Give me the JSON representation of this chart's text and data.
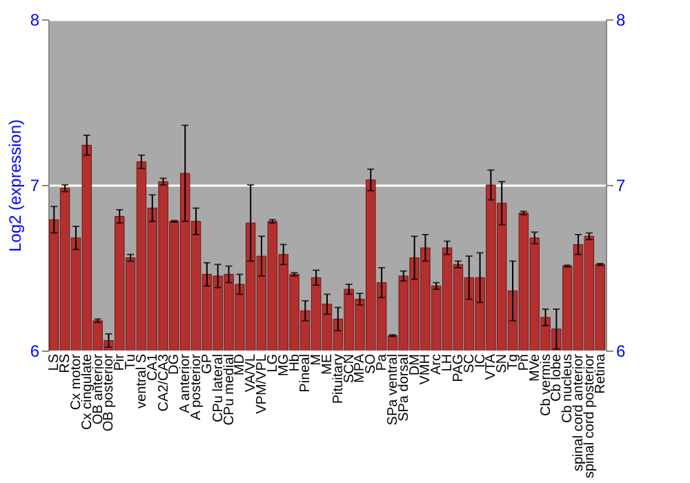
{
  "chart_data": {
    "type": "bar",
    "ylabel": "Log2 (expression)",
    "categories": [
      "LS",
      "RS",
      "Cx motor",
      "Cx cingulate",
      "OB anterior",
      "OB posterior",
      "Pir",
      "Tu",
      "ventral S",
      "CA1",
      "CA2/CA3",
      "DG",
      "A anterior",
      "A posterior",
      "GP",
      "CPu lateral",
      "CPu medial",
      "MD",
      "VA/VL",
      "VPM/VPL",
      "LG",
      "MG",
      "Hb",
      "Pineal",
      "M",
      "ME",
      "Pituitary",
      "SCN",
      "MPA",
      "SO",
      "Pa",
      "SPa ventral",
      "SPa dorsal",
      "DM",
      "VMH",
      "Arc",
      "LH",
      "PAG",
      "SC",
      "IC",
      "VTA",
      "SN",
      "Tg",
      "Pn",
      "MVe",
      "Cb vermis",
      "Cb lobe",
      "Cb nucleus",
      "spinal cord anterior",
      "spinal cord posterior",
      "Retina"
    ],
    "values": [
      6.79,
      6.98,
      6.68,
      7.24,
      6.18,
      6.06,
      6.81,
      6.56,
      7.14,
      6.86,
      7.02,
      6.78,
      7.07,
      6.78,
      6.46,
      6.45,
      6.46,
      6.4,
      6.77,
      6.57,
      6.78,
      6.58,
      6.46,
      6.24,
      6.44,
      6.28,
      6.19,
      6.37,
      6.31,
      7.03,
      6.41,
      6.09,
      6.45,
      6.56,
      6.62,
      6.39,
      6.62,
      6.52,
      6.44,
      6.44,
      7.0,
      6.89,
      6.36,
      6.83,
      6.68,
      6.2,
      6.13,
      6.51,
      6.64,
      6.69,
      6.52
    ],
    "errors": [
      0.08,
      0.02,
      0.07,
      0.06,
      0.01,
      0.04,
      0.04,
      0.02,
      0.04,
      0.08,
      0.02,
      0.005,
      0.29,
      0.08,
      0.07,
      0.07,
      0.05,
      0.06,
      0.23,
      0.12,
      0.01,
      0.06,
      0.01,
      0.06,
      0.045,
      0.06,
      0.07,
      0.03,
      0.035,
      0.065,
      0.09,
      0.005,
      0.03,
      0.13,
      0.08,
      0.02,
      0.04,
      0.02,
      0.13,
      0.15,
      0.09,
      0.13,
      0.18,
      0.01,
      0.035,
      0.05,
      0.12,
      0.005,
      0.06,
      0.02,
      0.005
    ],
    "color": "#b3302e",
    "ylim": [
      6,
      8
    ],
    "yticks": [
      6,
      7,
      8
    ],
    "y2lim": [
      6,
      8
    ],
    "y2ticks": [
      6,
      7,
      8
    ],
    "grid": "y"
  }
}
